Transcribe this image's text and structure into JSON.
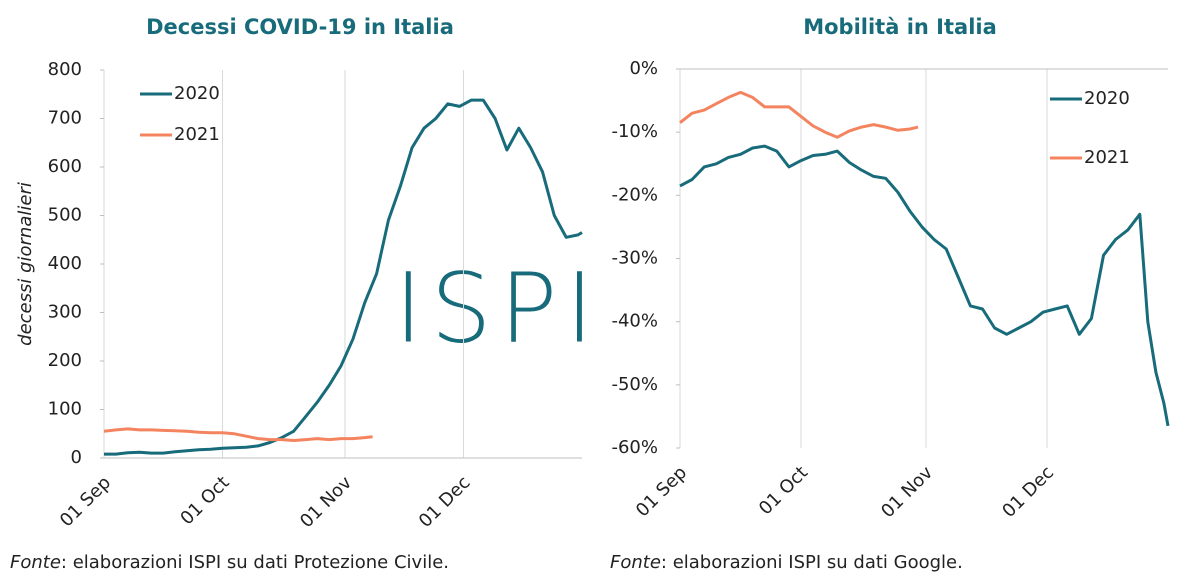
{
  "chart_data": [
    {
      "type": "line",
      "title": "Decessi COVID-19 in Italia",
      "ylabel": "decessi giornalieri",
      "watermark": "ISPI",
      "source_label": "Fonte",
      "source": ": elaborazioni ISPI su dati Protezione Civile.",
      "xlim": [
        0,
        121
      ],
      "xticks": [
        {
          "value": 0,
          "label": "01 Sep"
        },
        {
          "value": 30,
          "label": "01 Oct"
        },
        {
          "value": 61,
          "label": "01 Nov"
        },
        {
          "value": 91,
          "label": "01 Dec"
        }
      ],
      "ylim": [
        0,
        800
      ],
      "yticks": [
        0,
        100,
        200,
        300,
        400,
        500,
        600,
        700,
        800
      ],
      "grid": "x",
      "legend": "top-left",
      "series": [
        {
          "name": "2020",
          "color": "#176b7a",
          "x": [
            0,
            3,
            6,
            9,
            12,
            15,
            18,
            21,
            24,
            27,
            30,
            33,
            36,
            39,
            42,
            45,
            48,
            51,
            54,
            57,
            60,
            63,
            66,
            69,
            72,
            75,
            78,
            81,
            84,
            87,
            90,
            93,
            96,
            99,
            102,
            105,
            108,
            111,
            114,
            117,
            120,
            121
          ],
          "values": [
            8,
            8,
            11,
            12,
            10,
            10,
            13,
            15,
            17,
            18,
            20,
            21,
            22,
            25,
            32,
            42,
            55,
            85,
            115,
            150,
            190,
            245,
            320,
            380,
            490,
            560,
            640,
            680,
            700,
            730,
            725,
            738,
            738,
            700,
            635,
            680,
            640,
            590,
            500,
            455,
            460,
            465
          ]
        },
        {
          "name": "2021",
          "color": "#f4845f",
          "x": [
            0,
            3,
            6,
            9,
            12,
            15,
            18,
            21,
            24,
            27,
            30,
            33,
            36,
            39,
            42,
            45,
            48,
            51,
            54,
            57,
            60,
            63,
            66,
            68
          ],
          "values": [
            55,
            58,
            60,
            58,
            58,
            57,
            56,
            55,
            53,
            52,
            52,
            50,
            45,
            40,
            38,
            38,
            36,
            38,
            40,
            38,
            40,
            40,
            42,
            44
          ]
        }
      ]
    },
    {
      "type": "line",
      "title": "Mobilità in Italia",
      "source_label": "Fonte",
      "source": ": elaborazioni ISPI su dati Google.",
      "xlim": [
        0,
        121
      ],
      "xticks": [
        {
          "value": 0,
          "label": "01 Sep"
        },
        {
          "value": 30,
          "label": "01 Oct"
        },
        {
          "value": 61,
          "label": "01 Nov"
        },
        {
          "value": 91,
          "label": "01 Dec"
        }
      ],
      "ylim": [
        -60,
        0
      ],
      "yticks": [
        {
          "value": 0,
          "label": "0%"
        },
        {
          "value": -10,
          "label": "-10%"
        },
        {
          "value": -20,
          "label": "-20%"
        },
        {
          "value": -30,
          "label": "-30%"
        },
        {
          "value": -40,
          "label": "-40%"
        },
        {
          "value": -50,
          "label": "-50%"
        },
        {
          "value": -60,
          "label": "-60%"
        }
      ],
      "grid": "x",
      "legend": "top-right",
      "series": [
        {
          "name": "2020",
          "color": "#176b7a",
          "x": [
            0,
            3,
            6,
            9,
            12,
            15,
            18,
            21,
            24,
            27,
            30,
            33,
            36,
            39,
            42,
            45,
            48,
            51,
            54,
            57,
            60,
            63,
            66,
            69,
            72,
            75,
            78,
            81,
            84,
            87,
            90,
            93,
            96,
            99,
            102,
            105,
            108,
            111,
            114,
            116,
            118,
            120,
            121
          ],
          "values": [
            -18.5,
            -17.5,
            -15.5,
            -15,
            -14,
            -13.5,
            -12.5,
            -12.2,
            -13,
            -15.5,
            -14.5,
            -13.7,
            -13.5,
            -13,
            -14.8,
            -16,
            -17,
            -17.3,
            -19.5,
            -22.5,
            -25,
            -27,
            -28.5,
            -33,
            -37.5,
            -38,
            -41,
            -42,
            -41,
            -40,
            -38.5,
            -38,
            -37.5,
            -42,
            -39.5,
            -29.5,
            -27,
            -25.5,
            -23,
            -40,
            -48,
            -53,
            -56.5
          ]
        },
        {
          "name": "2021",
          "color": "#f4845f",
          "x": [
            0,
            3,
            6,
            9,
            12,
            15,
            18,
            21,
            24,
            27,
            30,
            33,
            36,
            39,
            42,
            45,
            48,
            51,
            54,
            57,
            59
          ],
          "values": [
            -8.5,
            -7,
            -6.5,
            -5.5,
            -4.5,
            -3.7,
            -4.5,
            -6,
            -6,
            -6,
            -7.5,
            -9,
            -10,
            -10.8,
            -9.8,
            -9.2,
            -8.8,
            -9.2,
            -9.7,
            -9.5,
            -9.2
          ]
        }
      ]
    }
  ]
}
